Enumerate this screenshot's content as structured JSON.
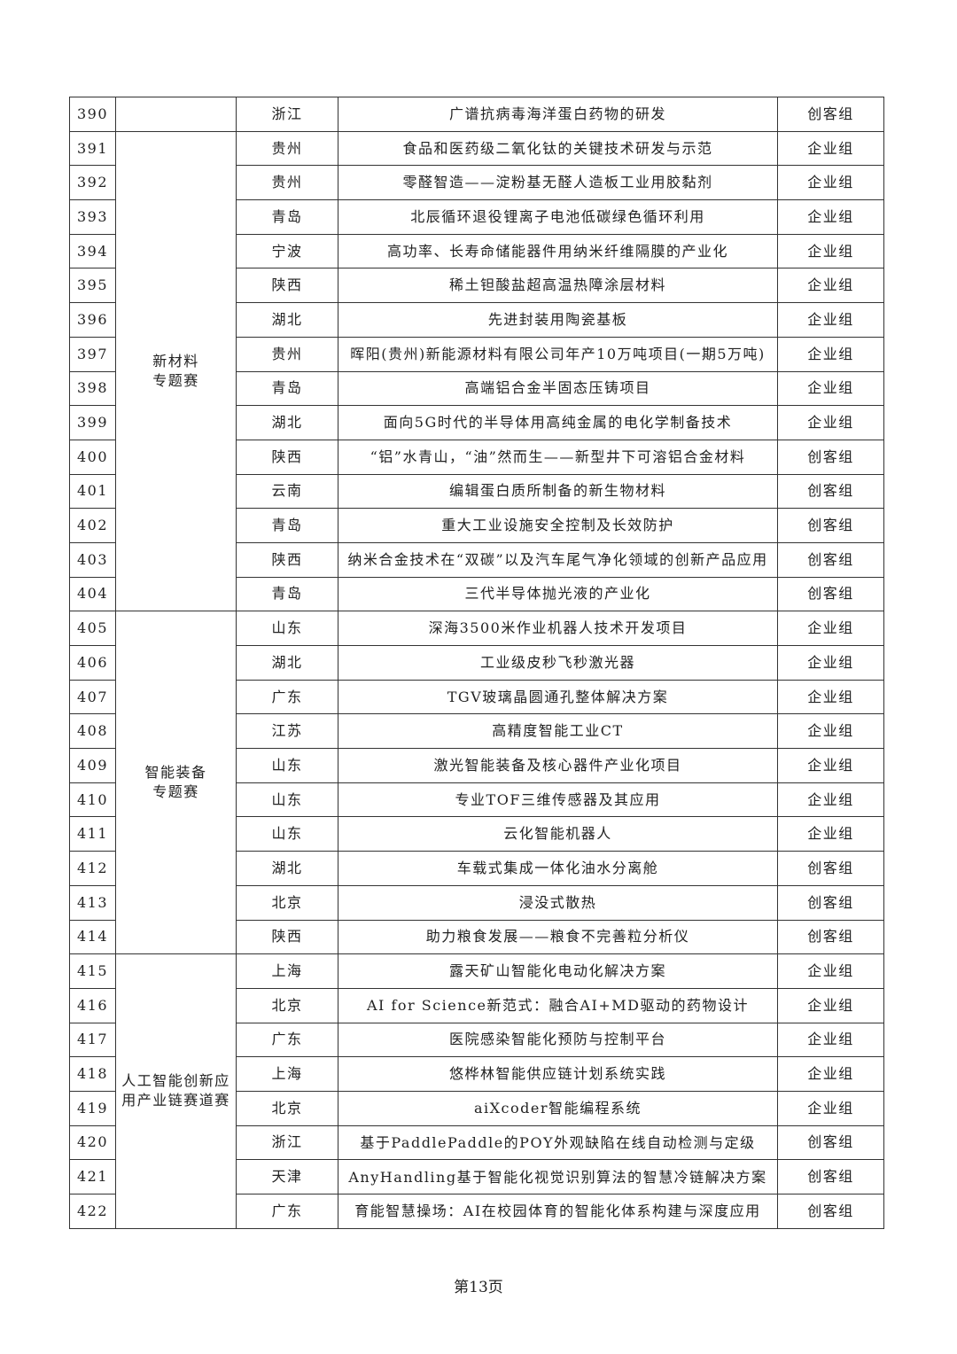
{
  "rows": [
    {
      "no": "390",
      "region": "浙江",
      "project": "广谱抗病毒海洋蛋白药物的研发",
      "group": "创客组"
    },
    {
      "no": "391",
      "region": "贵州",
      "project": "食品和医药级二氧化钛的关键技术研发与示范",
      "group": "企业组"
    },
    {
      "no": "392",
      "region": "贵州",
      "project": "零醛智造——淀粉基无醛人造板工业用胶黏剂",
      "group": "企业组"
    },
    {
      "no": "393",
      "region": "青岛",
      "project": "北辰循环退役锂离子电池低碳绿色循环利用",
      "group": "企业组"
    },
    {
      "no": "394",
      "region": "宁波",
      "project": "高功率、长寿命储能器件用纳米纤维隔膜的产业化",
      "group": "企业组"
    },
    {
      "no": "395",
      "region": "陕西",
      "project": "稀土钽酸盐超高温热障涂层材料",
      "group": "企业组"
    },
    {
      "no": "396",
      "region": "湖北",
      "project": "先进封装用陶瓷基板",
      "group": "企业组"
    },
    {
      "no": "397",
      "region": "贵州",
      "project": "晖阳(贵州)新能源材料有限公司年产10万吨项目(一期5万吨)",
      "group": "企业组"
    },
    {
      "no": "398",
      "region": "青岛",
      "project": "高端铝合金半固态压铸项目",
      "group": "企业组"
    },
    {
      "no": "399",
      "region": "湖北",
      "project": "面向5G时代的半导体用高纯金属的电化学制备技术",
      "group": "企业组"
    },
    {
      "no": "400",
      "region": "陕西",
      "project": "“铝”水青山，“油”然而生——新型井下可溶铝合金材料",
      "group": "创客组"
    },
    {
      "no": "401",
      "region": "云南",
      "project": "编辑蛋白质所制备的新生物材料",
      "group": "创客组"
    },
    {
      "no": "402",
      "region": "青岛",
      "project": "重大工业设施安全控制及长效防护",
      "group": "创客组"
    },
    {
      "no": "403",
      "region": "陕西",
      "project": "纳米合金技术在“双碳”以及汽车尾气净化领域的创新产品应用",
      "group": "创客组"
    },
    {
      "no": "404",
      "region": "青岛",
      "project": "三代半导体抛光液的产业化",
      "group": "创客组"
    },
    {
      "no": "405",
      "region": "山东",
      "project": "深海3500米作业机器人技术开发项目",
      "group": "企业组"
    },
    {
      "no": "406",
      "region": "湖北",
      "project": "工业级皮秒飞秒激光器",
      "group": "企业组"
    },
    {
      "no": "407",
      "region": "广东",
      "project": "TGV玻璃晶圆通孔整体解决方案",
      "group": "企业组"
    },
    {
      "no": "408",
      "region": "江苏",
      "project": "高精度智能工业CT",
      "group": "企业组"
    },
    {
      "no": "409",
      "region": "山东",
      "project": "激光智能装备及核心器件产业化项目",
      "group": "企业组"
    },
    {
      "no": "410",
      "region": "山东",
      "project": "专业TOF三维传感器及其应用",
      "group": "企业组"
    },
    {
      "no": "411",
      "region": "山东",
      "project": "云化智能机器人",
      "group": "企业组"
    },
    {
      "no": "412",
      "region": "湖北",
      "project": "车载式集成一体化油水分离舱",
      "group": "创客组"
    },
    {
      "no": "413",
      "region": "北京",
      "project": "浸没式散热",
      "group": "创客组"
    },
    {
      "no": "414",
      "region": "陕西",
      "project": "助力粮食发展——粮食不完善粒分析仪",
      "group": "创客组"
    },
    {
      "no": "415",
      "region": "上海",
      "project": "露天矿山智能化电动化解决方案",
      "group": "企业组"
    },
    {
      "no": "416",
      "region": "北京",
      "project": "AI for Science新范式：融合AI+MD驱动的药物设计",
      "group": "企业组"
    },
    {
      "no": "417",
      "region": "广东",
      "project": "医院感染智能化预防与控制平台",
      "group": "企业组"
    },
    {
      "no": "418",
      "region": "上海",
      "project": "悠桦林智能供应链计划系统实践",
      "group": "企业组"
    },
    {
      "no": "419",
      "region": "北京",
      "project": "aiXcoder智能编程系统",
      "group": "企业组"
    },
    {
      "no": "420",
      "region": "浙江",
      "project": "基于PaddlePaddle的POY外观缺陷在线自动检测与定级",
      "group": "创客组"
    },
    {
      "no": "421",
      "region": "天津",
      "project": "AnyHandling基于智能化视觉识别算法的智慧冷链解决方案",
      "group": "创客组"
    },
    {
      "no": "422",
      "region": "广东",
      "project": "育能智慧操场：AI在校园体育的智能化体系构建与深度应用",
      "group": "创客组"
    }
  ],
  "categories": [
    {
      "start": 0,
      "span": 1,
      "line1": "",
      "line2": ""
    },
    {
      "start": 1,
      "span": 14,
      "line1": "新材料",
      "line2": "专题赛"
    },
    {
      "start": 15,
      "span": 10,
      "line1": "智能装备",
      "line2": "专题赛"
    },
    {
      "start": 25,
      "span": 8,
      "line1": "人工智能创新应",
      "line2": "用产业链赛道赛"
    }
  ],
  "footer": {
    "page": "第13页"
  }
}
